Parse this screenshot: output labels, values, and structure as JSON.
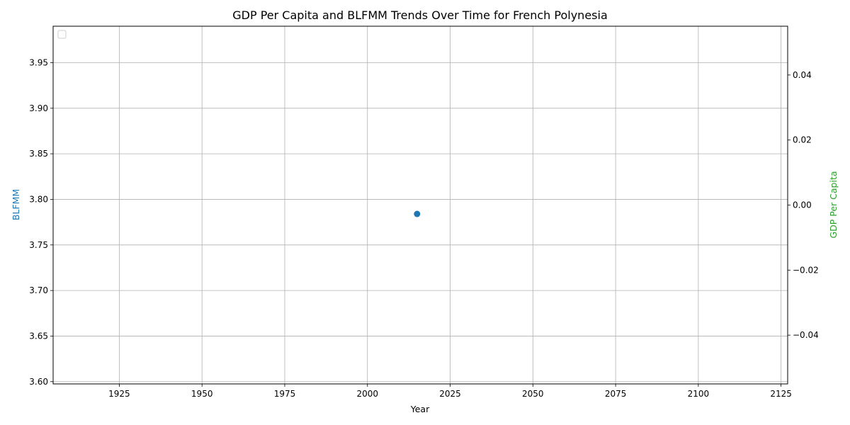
{
  "chart_data": {
    "type": "scatter",
    "title": "GDP Per Capita and BLFMM Trends Over Time for French Polynesia",
    "xlabel": "Year",
    "ylabel_left": "BLFMM",
    "ylabel_right": "GDP Per Capita",
    "xlim": [
      1905,
      2127
    ],
    "ylim_left": [
      3.5975,
      3.99
    ],
    "ylim_right": [
      -0.055,
      0.055
    ],
    "x_ticks": [
      1925,
      1950,
      1975,
      2000,
      2025,
      2050,
      2075,
      2100,
      2125
    ],
    "x_tick_labels": [
      "1925",
      "1950",
      "1975",
      "2000",
      "2025",
      "2050",
      "2075",
      "2100",
      "2125"
    ],
    "y_left_ticks": [
      3.6,
      3.65,
      3.7,
      3.75,
      3.8,
      3.85,
      3.9,
      3.95
    ],
    "y_left_tick_labels": [
      "3.60",
      "3.65",
      "3.70",
      "3.75",
      "3.80",
      "3.85",
      "3.90",
      "3.95"
    ],
    "y_right_ticks": [
      -0.04,
      -0.02,
      0.0,
      0.02,
      0.04
    ],
    "y_right_tick_labels": [
      "−0.04",
      "−0.02",
      "0.00",
      "0.02",
      "0.04"
    ],
    "grid": true,
    "legend": "top-left (empty)",
    "series": [
      {
        "name": "BLFMM",
        "axis": "left",
        "color": "#1f77b4",
        "marker": "circle",
        "x": [
          2015
        ],
        "y": [
          3.784
        ]
      },
      {
        "name": "GDP Per Capita",
        "axis": "right",
        "color": "#2ca02c",
        "marker": "circle",
        "x": [],
        "y": []
      }
    ]
  },
  "colors": {
    "left_axis_label": "#1f77b4",
    "right_axis_label": "#2ca02c",
    "grid": "#b0b0b0"
  }
}
